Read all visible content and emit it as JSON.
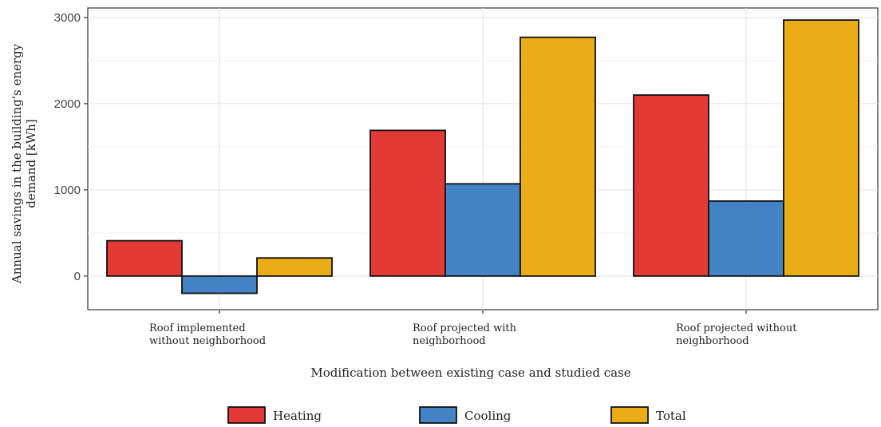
{
  "chart_data": {
    "type": "bar",
    "title": "",
    "xlabel": "Modification between existing case and studied case",
    "ylabel_lines": [
      "Annual savings in the building's energy",
      "demand [kWh]"
    ],
    "ylim": [
      -390,
      3110
    ],
    "yticks": [
      0,
      1000,
      2000,
      3000
    ],
    "grid": true,
    "legend_position": "bottom",
    "categories": [
      [
        "Roof implemented",
        "without neighborhood"
      ],
      [
        "Roof projected with",
        "neighborhood"
      ],
      [
        "Roof projected without",
        "neighborhood"
      ]
    ],
    "series": [
      {
        "name": "Heating",
        "color": "#E33A36",
        "values": [
          410,
          1690,
          2100
        ]
      },
      {
        "name": "Cooling",
        "color": "#4383C6",
        "values": [
          -200,
          1070,
          870
        ]
      },
      {
        "name": "Total",
        "color": "#EAAD16",
        "values": [
          210,
          2770,
          2970
        ]
      }
    ]
  }
}
